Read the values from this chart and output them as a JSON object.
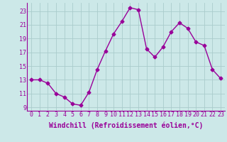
{
  "x": [
    0,
    1,
    2,
    3,
    4,
    5,
    6,
    7,
    8,
    9,
    10,
    11,
    12,
    13,
    14,
    15,
    16,
    17,
    18,
    19,
    20,
    21,
    22,
    23
  ],
  "y": [
    13,
    13,
    12.5,
    11,
    10.5,
    9.5,
    9.3,
    11.2,
    14.5,
    17.2,
    19.7,
    21.5,
    23.5,
    23.2,
    17.5,
    16.3,
    17.8,
    20.0,
    21.3,
    20.5,
    18.5,
    18.0,
    14.5,
    13.2
  ],
  "line_color": "#990099",
  "marker": "D",
  "marker_size": 2.5,
  "line_width": 1,
  "bg_color": "#cce8e8",
  "grid_color": "#aacccc",
  "xlabel": "Windchill (Refroidissement éolien,°C)",
  "xlabel_fontsize": 7,
  "tick_fontsize": 6,
  "xlim": [
    -0.5,
    23.5
  ],
  "ylim": [
    8.5,
    24.2
  ],
  "yticks": [
    9,
    11,
    13,
    15,
    17,
    19,
    21,
    23
  ],
  "xticks": [
    0,
    1,
    2,
    3,
    4,
    5,
    6,
    7,
    8,
    9,
    10,
    11,
    12,
    13,
    14,
    15,
    16,
    17,
    18,
    19,
    20,
    21,
    22,
    23
  ]
}
